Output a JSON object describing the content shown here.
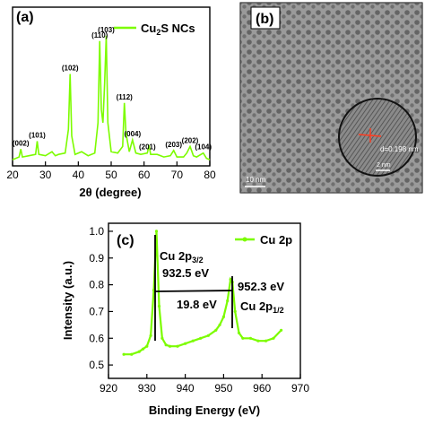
{
  "colors": {
    "line": "#7CFC00",
    "axis": "#000000",
    "panel_label_bg": "#ffffff"
  },
  "panel_a": {
    "label": "(a)",
    "legend": "Cu",
    "legend_sub": "2",
    "legend_suffix": "S NCs",
    "x_axis_label": "2θ (degree)",
    "x_ticks": [
      "20",
      "30",
      "40",
      "50",
      "60",
      "70",
      "80"
    ],
    "peak_labels": [
      {
        "text": "(002)",
        "two_theta": 22.5
      },
      {
        "text": "(101)",
        "two_theta": 27.5
      },
      {
        "text": "(102)",
        "two_theta": 37.5
      },
      {
        "text": "(110)",
        "two_theta": 46.5
      },
      {
        "text": "(103)",
        "two_theta": 48.5
      },
      {
        "text": "(112)",
        "two_theta": 54.0
      },
      {
        "text": "(004)",
        "two_theta": 56.5
      },
      {
        "text": "(201)",
        "two_theta": 61.0
      },
      {
        "text": "(203)",
        "two_theta": 69.0
      },
      {
        "text": "(202)",
        "two_theta": 74.0
      },
      {
        "text": "(104)",
        "two_theta": 78.0
      }
    ]
  },
  "panel_b": {
    "label": "(b)",
    "spacing": "d=0.198 nm",
    "scale_main": "10 nm",
    "scale_inset": "2 nm"
  },
  "panel_c": {
    "label": "(c)",
    "legend": "Cu 2p",
    "y_axis_label": "Intensity (a.u.)",
    "x_axis_label": "Binding Energy (eV)",
    "x_ticks": [
      "920",
      "930",
      "940",
      "950",
      "960",
      "970"
    ],
    "y_ticks": [
      "0.5",
      "0.6",
      "0.7",
      "0.8",
      "0.9",
      "1.0"
    ],
    "peak1_name": "Cu 2p",
    "peak1_sub": "3/2",
    "peak1_energy": "932.5 eV",
    "peak2_energy": "952.3 eV",
    "peak2_name": "Cu 2p",
    "peak2_sub": "1/2",
    "splitting": "19.8 eV"
  },
  "chart_data": [
    {
      "type": "line",
      "title": "",
      "xlabel": "2θ (degree)",
      "ylabel": "",
      "xlim": [
        20,
        80
      ],
      "ylim": [
        0,
        1
      ],
      "series": [
        {
          "name": "Cu2S NCs",
          "x": [
            20,
            22,
            22.5,
            23,
            25,
            27,
            27.5,
            28,
            30,
            32,
            33,
            34,
            36,
            37,
            37.5,
            38,
            39,
            41,
            43,
            45,
            46,
            46.5,
            47,
            47.5,
            48,
            48.5,
            49,
            50,
            52,
            53.5,
            54,
            54.5,
            55.5,
            56.5,
            57.5,
            59,
            61,
            61.5,
            62,
            64,
            66,
            68,
            69,
            70,
            72,
            73,
            74,
            75,
            76,
            78,
            79,
            80
          ],
          "y": [
            0.02,
            0.04,
            0.1,
            0.04,
            0.05,
            0.06,
            0.16,
            0.06,
            0.05,
            0.08,
            0.05,
            0.06,
            0.07,
            0.25,
            0.67,
            0.2,
            0.06,
            0.08,
            0.05,
            0.07,
            0.3,
            0.92,
            0.4,
            0.3,
            0.6,
            0.96,
            0.3,
            0.08,
            0.07,
            0.12,
            0.45,
            0.22,
            0.08,
            0.17,
            0.07,
            0.06,
            0.07,
            0.13,
            0.06,
            0.06,
            0.04,
            0.05,
            0.09,
            0.04,
            0.04,
            0.07,
            0.12,
            0.05,
            0.04,
            0.07,
            0.03,
            0.02
          ]
        }
      ]
    },
    {
      "type": "line",
      "title": "",
      "xlabel": "Binding Energy (eV)",
      "ylabel": "Intensity (a.u.)",
      "xlim": [
        920,
        970
      ],
      "ylim": [
        0.45,
        1.03
      ],
      "series": [
        {
          "name": "Cu 2p",
          "x": [
            924,
            926,
            928,
            929,
            930,
            931,
            931.8,
            932.5,
            933.2,
            934,
            935,
            936,
            938,
            940,
            942,
            944,
            946,
            948,
            949,
            950,
            951,
            951.8,
            952.3,
            953,
            954,
            955,
            957,
            959,
            961,
            963,
            965
          ],
          "y": [
            0.54,
            0.54,
            0.55,
            0.56,
            0.57,
            0.61,
            0.78,
            1.0,
            0.72,
            0.6,
            0.575,
            0.57,
            0.57,
            0.58,
            0.59,
            0.6,
            0.61,
            0.63,
            0.65,
            0.68,
            0.74,
            0.82,
            0.81,
            0.7,
            0.62,
            0.6,
            0.6,
            0.59,
            0.59,
            0.6,
            0.63
          ]
        }
      ]
    }
  ]
}
